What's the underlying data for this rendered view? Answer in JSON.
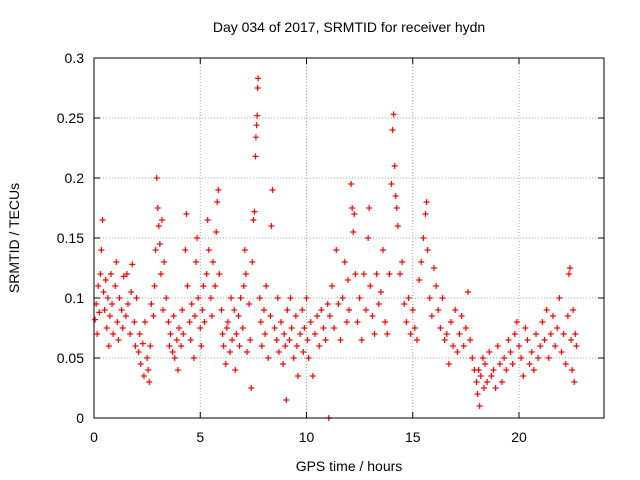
{
  "chart_data": {
    "type": "scatter",
    "title": "Day 034 of 2017, SRMTID for receiver hydn",
    "xlabel": "GPS time / hours",
    "ylabel": "SRMTID / TECUs",
    "xlim": [
      0,
      24
    ],
    "ylim": [
      0,
      0.3
    ],
    "xticks": [
      0,
      5,
      10,
      15,
      20
    ],
    "xtick_labels": [
      "0",
      "5",
      "10",
      "15",
      "20"
    ],
    "yticks": [
      0,
      0.05,
      0.1,
      0.15,
      0.2,
      0.25,
      0.3
    ],
    "ytick_labels": [
      "0",
      "0.05",
      "0.1",
      "0.15",
      "0.2",
      "0.25",
      "0.3"
    ],
    "grid": true,
    "marker": "+",
    "color": "#ff0000",
    "series": [
      {
        "name": "SRMTID",
        "points": [
          [
            0.05,
            0.082
          ],
          [
            0.1,
            0.095
          ],
          [
            0.15,
            0.07
          ],
          [
            0.2,
            0.11
          ],
          [
            0.25,
            0.088
          ],
          [
            0.3,
            0.12
          ],
          [
            0.35,
            0.14
          ],
          [
            0.4,
            0.165
          ],
          [
            0.45,
            0.105
          ],
          [
            0.5,
            0.09
          ],
          [
            0.55,
            0.115
          ],
          [
            0.6,
            0.075
          ],
          [
            0.65,
            0.1
          ],
          [
            0.7,
            0.06
          ],
          [
            0.75,
            0.085
          ],
          [
            0.8,
            0.12
          ],
          [
            0.85,
            0.095
          ],
          [
            0.9,
            0.07
          ],
          [
            1.0,
            0.11
          ],
          [
            1.05,
            0.13
          ],
          [
            1.1,
            0.08
          ],
          [
            1.15,
            0.065
          ],
          [
            1.2,
            0.1
          ],
          [
            1.3,
            0.09
          ],
          [
            1.35,
            0.075
          ],
          [
            1.4,
            0.118
          ],
          [
            1.5,
            0.085
          ],
          [
            1.55,
            0.12
          ],
          [
            1.6,
            0.095
          ],
          [
            1.7,
            0.07
          ],
          [
            1.75,
            0.105
          ],
          [
            1.8,
            0.128
          ],
          [
            1.9,
            0.08
          ],
          [
            1.95,
            0.06
          ],
          [
            2.0,
            0.1
          ],
          [
            2.1,
            0.055
          ],
          [
            2.15,
            0.07
          ],
          [
            2.2,
            0.045
          ],
          [
            2.3,
            0.062
          ],
          [
            2.35,
            0.035
          ],
          [
            2.4,
            0.08
          ],
          [
            2.5,
            0.05
          ],
          [
            2.55,
            0.04
          ],
          [
            2.6,
            0.03
          ],
          [
            2.65,
            0.06
          ],
          [
            2.7,
            0.095
          ],
          [
            2.8,
            0.085
          ],
          [
            2.85,
            0.11
          ],
          [
            2.9,
            0.14
          ],
          [
            2.95,
            0.2
          ],
          [
            3.0,
            0.175
          ],
          [
            3.05,
            0.16
          ],
          [
            3.1,
            0.145
          ],
          [
            3.15,
            0.12
          ],
          [
            3.2,
            0.165
          ],
          [
            3.25,
            0.09
          ],
          [
            3.3,
            0.13
          ],
          [
            3.4,
            0.1
          ],
          [
            3.5,
            0.08
          ],
          [
            3.55,
            0.06
          ],
          [
            3.6,
            0.07
          ],
          [
            3.7,
            0.055
          ],
          [
            3.75,
            0.085
          ],
          [
            3.8,
            0.05
          ],
          [
            3.9,
            0.065
          ],
          [
            3.95,
            0.04
          ],
          [
            4.0,
            0.075
          ],
          [
            4.1,
            0.06
          ],
          [
            4.15,
            0.09
          ],
          [
            4.2,
            0.07
          ],
          [
            4.3,
            0.14
          ],
          [
            4.35,
            0.17
          ],
          [
            4.4,
            0.11
          ],
          [
            4.5,
            0.08
          ],
          [
            4.55,
            0.065
          ],
          [
            4.6,
            0.095
          ],
          [
            4.7,
            0.05
          ],
          [
            4.75,
            0.085
          ],
          [
            4.8,
            0.13
          ],
          [
            4.85,
            0.15
          ],
          [
            4.9,
            0.1
          ],
          [
            5.0,
            0.075
          ],
          [
            5.05,
            0.06
          ],
          [
            5.1,
            0.09
          ],
          [
            5.15,
            0.11
          ],
          [
            5.2,
            0.08
          ],
          [
            5.3,
            0.12
          ],
          [
            5.35,
            0.165
          ],
          [
            5.4,
            0.14
          ],
          [
            5.5,
            0.1
          ],
          [
            5.55,
            0.085
          ],
          [
            5.6,
            0.13
          ],
          [
            5.7,
            0.11
          ],
          [
            5.75,
            0.155
          ],
          [
            5.8,
            0.18
          ],
          [
            5.85,
            0.19
          ],
          [
            5.9,
            0.12
          ],
          [
            6.0,
            0.09
          ],
          [
            6.05,
            0.07
          ],
          [
            6.1,
            0.06
          ],
          [
            6.2,
            0.045
          ],
          [
            6.25,
            0.075
          ],
          [
            6.3,
            0.08
          ],
          [
            6.4,
            0.055
          ],
          [
            6.45,
            0.1
          ],
          [
            6.5,
            0.065
          ],
          [
            6.6,
            0.09
          ],
          [
            6.65,
            0.04
          ],
          [
            6.7,
            0.07
          ],
          [
            6.8,
            0.085
          ],
          [
            6.85,
            0.06
          ],
          [
            6.9,
            0.1
          ],
          [
            7.0,
            0.075
          ],
          [
            7.05,
            0.11
          ],
          [
            7.1,
            0.14
          ],
          [
            7.15,
            0.12
          ],
          [
            7.2,
            0.055
          ],
          [
            7.3,
            0.095
          ],
          [
            7.35,
            0.065
          ],
          [
            7.4,
            0.025
          ],
          [
            7.45,
            0.13
          ],
          [
            7.5,
            0.165
          ],
          [
            7.55,
            0.172
          ],
          [
            7.6,
            0.218
          ],
          [
            7.62,
            0.234
          ],
          [
            7.65,
            0.244
          ],
          [
            7.68,
            0.252
          ],
          [
            7.7,
            0.275
          ],
          [
            7.72,
            0.283
          ],
          [
            7.8,
            0.1
          ],
          [
            7.85,
            0.08
          ],
          [
            7.9,
            0.06
          ],
          [
            8.0,
            0.09
          ],
          [
            8.05,
            0.07
          ],
          [
            8.1,
            0.11
          ],
          [
            8.2,
            0.05
          ],
          [
            8.3,
            0.085
          ],
          [
            8.35,
            0.16
          ],
          [
            8.4,
            0.19
          ],
          [
            8.5,
            0.075
          ],
          [
            8.6,
            0.065
          ],
          [
            8.65,
            0.1
          ],
          [
            8.7,
            0.055
          ],
          [
            8.8,
            0.08
          ],
          [
            8.9,
            0.045
          ],
          [
            8.95,
            0.07
          ],
          [
            9.0,
            0.06
          ],
          [
            9.05,
            0.015
          ],
          [
            9.1,
            0.09
          ],
          [
            9.2,
            0.065
          ],
          [
            9.25,
            0.1
          ],
          [
            9.3,
            0.075
          ],
          [
            9.4,
            0.05
          ],
          [
            9.5,
            0.085
          ],
          [
            9.55,
            0.06
          ],
          [
            9.6,
            0.035
          ],
          [
            9.7,
            0.07
          ],
          [
            9.8,
            0.09
          ],
          [
            9.85,
            0.055
          ],
          [
            9.9,
            0.075
          ],
          [
            10.0,
            0.1
          ],
          [
            10.05,
            0.065
          ],
          [
            10.1,
            0.05
          ],
          [
            10.2,
            0.08
          ],
          [
            10.3,
            0.035
          ],
          [
            10.4,
            0.07
          ],
          [
            10.5,
            0.085
          ],
          [
            10.6,
            0.06
          ],
          [
            10.7,
            0.09
          ],
          [
            10.8,
            0.075
          ],
          [
            10.9,
            0.065
          ],
          [
            11.0,
            0.095
          ],
          [
            11.05,
            0.0
          ],
          [
            11.1,
            0.085
          ],
          [
            11.2,
            0.11
          ],
          [
            11.3,
            0.075
          ],
          [
            11.4,
            0.14
          ],
          [
            11.5,
            0.095
          ],
          [
            11.6,
            0.065
          ],
          [
            11.7,
            0.1
          ],
          [
            11.8,
            0.13
          ],
          [
            11.9,
            0.08
          ],
          [
            11.95,
            0.115
          ],
          [
            12.0,
            0.09
          ],
          [
            12.1,
            0.195
          ],
          [
            12.15,
            0.175
          ],
          [
            12.2,
            0.155
          ],
          [
            12.25,
            0.17
          ],
          [
            12.3,
            0.12
          ],
          [
            12.4,
            0.08
          ],
          [
            12.5,
            0.1
          ],
          [
            12.6,
            0.065
          ],
          [
            12.7,
            0.12
          ],
          [
            12.8,
            0.09
          ],
          [
            12.9,
            0.15
          ],
          [
            12.95,
            0.175
          ],
          [
            13.0,
            0.11
          ],
          [
            13.1,
            0.085
          ],
          [
            13.2,
            0.07
          ],
          [
            13.3,
            0.12
          ],
          [
            13.4,
            0.095
          ],
          [
            13.5,
            0.105
          ],
          [
            13.6,
            0.14
          ],
          [
            13.7,
            0.08
          ],
          [
            13.8,
            0.07
          ],
          [
            13.9,
            0.12
          ],
          [
            14.0,
            0.195
          ],
          [
            14.05,
            0.24
          ],
          [
            14.1,
            0.253
          ],
          [
            14.15,
            0.21
          ],
          [
            14.2,
            0.185
          ],
          [
            14.25,
            0.175
          ],
          [
            14.3,
            0.16
          ],
          [
            14.4,
            0.12
          ],
          [
            14.5,
            0.13
          ],
          [
            14.6,
            0.095
          ],
          [
            14.7,
            0.08
          ],
          [
            14.8,
            0.1
          ],
          [
            14.9,
            0.07
          ],
          [
            15.0,
            0.09
          ],
          [
            15.1,
            0.075
          ],
          [
            15.2,
            0.065
          ],
          [
            15.3,
            0.115
          ],
          [
            15.4,
            0.13
          ],
          [
            15.5,
            0.15
          ],
          [
            15.6,
            0.17
          ],
          [
            15.65,
            0.18
          ],
          [
            15.7,
            0.14
          ],
          [
            15.8,
            0.1
          ],
          [
            15.9,
            0.085
          ],
          [
            16.0,
            0.125
          ],
          [
            16.1,
            0.11
          ],
          [
            16.2,
            0.09
          ],
          [
            16.3,
            0.075
          ],
          [
            16.4,
            0.1
          ],
          [
            16.5,
            0.065
          ],
          [
            16.6,
            0.07
          ],
          [
            16.7,
            0.045
          ],
          [
            16.8,
            0.08
          ],
          [
            16.9,
            0.06
          ],
          [
            17.0,
            0.09
          ],
          [
            17.1,
            0.055
          ],
          [
            17.2,
            0.07
          ],
          [
            17.3,
            0.085
          ],
          [
            17.4,
            0.06
          ],
          [
            17.5,
            0.075
          ],
          [
            17.6,
            0.105
          ],
          [
            17.7,
            0.065
          ],
          [
            17.8,
            0.05
          ],
          [
            17.9,
            0.04
          ],
          [
            18.0,
            0.03
          ],
          [
            18.05,
            0.02
          ],
          [
            18.1,
            0.04
          ],
          [
            18.15,
            0.01
          ],
          [
            18.2,
            0.035
          ],
          [
            18.3,
            0.05
          ],
          [
            18.35,
            0.025
          ],
          [
            18.4,
            0.045
          ],
          [
            18.5,
            0.03
          ],
          [
            18.6,
            0.055
          ],
          [
            18.7,
            0.035
          ],
          [
            18.8,
            0.04
          ],
          [
            18.9,
            0.025
          ],
          [
            19.0,
            0.06
          ],
          [
            19.1,
            0.045
          ],
          [
            19.2,
            0.03
          ],
          [
            19.3,
            0.05
          ],
          [
            19.4,
            0.04
          ],
          [
            19.5,
            0.065
          ],
          [
            19.6,
            0.055
          ],
          [
            19.7,
            0.045
          ],
          [
            19.8,
            0.07
          ],
          [
            19.9,
            0.08
          ],
          [
            20.0,
            0.06
          ],
          [
            20.1,
            0.05
          ],
          [
            20.2,
            0.035
          ],
          [
            20.3,
            0.075
          ],
          [
            20.4,
            0.065
          ],
          [
            20.5,
            0.045
          ],
          [
            20.6,
            0.055
          ],
          [
            20.7,
            0.04
          ],
          [
            20.8,
            0.07
          ],
          [
            20.9,
            0.05
          ],
          [
            21.0,
            0.06
          ],
          [
            21.1,
            0.08
          ],
          [
            21.2,
            0.065
          ],
          [
            21.3,
            0.09
          ],
          [
            21.4,
            0.05
          ],
          [
            21.5,
            0.07
          ],
          [
            21.6,
            0.085
          ],
          [
            21.7,
            0.06
          ],
          [
            21.8,
            0.075
          ],
          [
            21.9,
            0.1
          ],
          [
            22.0,
            0.055
          ],
          [
            22.1,
            0.07
          ],
          [
            22.2,
            0.045
          ],
          [
            22.3,
            0.085
          ],
          [
            22.35,
            0.12
          ],
          [
            22.4,
            0.125
          ],
          [
            22.45,
            0.065
          ],
          [
            22.5,
            0.04
          ],
          [
            22.55,
            0.09
          ],
          [
            22.6,
            0.03
          ],
          [
            22.65,
            0.07
          ],
          [
            22.7,
            0.06
          ]
        ]
      }
    ]
  }
}
